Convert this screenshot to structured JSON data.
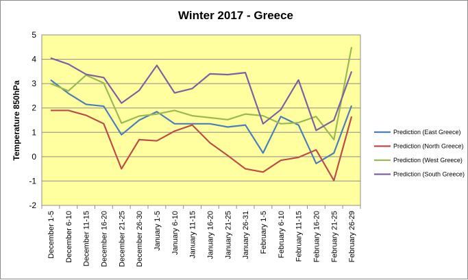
{
  "chart_data": {
    "type": "line",
    "title": "Winter 2017 - Greece",
    "xlabel": "",
    "ylabel": "Temperature 850hPa",
    "ylim": [
      -2,
      5
    ],
    "yticks": [
      5,
      4,
      3,
      2,
      1,
      0,
      -1,
      -2
    ],
    "grid": true,
    "legend_position": "right",
    "plot_background": "#ffffa0",
    "categories": [
      "December 1-5",
      "December 6-10",
      "December 11-15",
      "December 16-20",
      "December 21-25",
      "December 26-30",
      "January 1-5",
      "January 6-10",
      "January 11-15",
      "January 16-20",
      "January 21-25",
      "January 26-31",
      "February 1-5",
      "February 6-10",
      "February 11-15",
      "February 16-20",
      "February 21-25",
      "February 26-29"
    ],
    "series": [
      {
        "name": "Prediction (East Greece)",
        "color": "#4a7ebb",
        "values": [
          3.15,
          2.6,
          2.15,
          2.07,
          0.9,
          1.5,
          1.85,
          1.35,
          1.35,
          1.35,
          1.22,
          1.3,
          0.15,
          1.65,
          1.3,
          -0.28,
          0.15,
          2.1
        ]
      },
      {
        "name": "Prediction (North Greece)",
        "color": "#be4b48",
        "values": [
          1.9,
          1.9,
          1.7,
          1.35,
          -0.5,
          0.7,
          0.65,
          1.05,
          1.3,
          0.57,
          0.05,
          -0.5,
          -0.63,
          -0.15,
          -0.03,
          0.28,
          -0.98,
          1.65
        ]
      },
      {
        "name": "Prediction (West Greece)",
        "color": "#98b954",
        "values": [
          3.0,
          2.7,
          3.35,
          3.02,
          1.38,
          1.67,
          1.75,
          1.9,
          1.68,
          1.6,
          1.52,
          1.75,
          1.68,
          1.35,
          1.4,
          1.65,
          0.7,
          4.5
        ]
      },
      {
        "name": "Prediction (South Greece)",
        "color": "#7d60a0",
        "values": [
          4.05,
          3.8,
          3.38,
          3.25,
          2.2,
          2.72,
          3.75,
          2.62,
          2.8,
          3.4,
          3.37,
          3.45,
          1.35,
          1.93,
          3.15,
          1.08,
          1.5,
          3.5
        ]
      }
    ]
  }
}
